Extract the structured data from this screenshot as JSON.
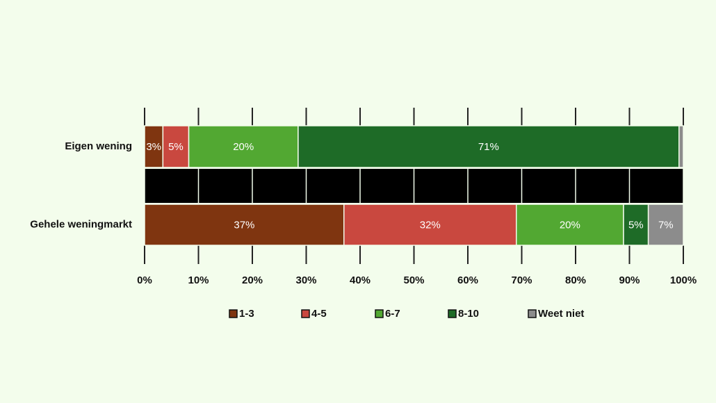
{
  "chart_data": {
    "type": "stacked-bar",
    "categories": [
      "Eigen wening",
      "Gehele weningmarkt"
    ],
    "series": [
      {
        "name": "1-3",
        "color": "#7f3510",
        "values": [
          3.4,
          37
        ],
        "value_labels": [
          "3%",
          "37%"
        ]
      },
      {
        "name": "4-5",
        "color": "#c9483f",
        "values": [
          4.8,
          32
        ],
        "value_labels": [
          "5%",
          "32%"
        ]
      },
      {
        "name": "6-7",
        "color": "#52a832",
        "values": [
          20.3,
          19.9
        ],
        "value_labels": [
          "20%",
          "20%"
        ]
      },
      {
        "name": "8-10",
        "color": "#1e6b27",
        "values": [
          70.7,
          4.6
        ],
        "value_labels": [
          "71%",
          "5%"
        ]
      },
      {
        "name": "Weet niet",
        "color": "#8c8c8c",
        "values": [
          0.8,
          6.5
        ],
        "value_labels": [
          null,
          "7%"
        ]
      }
    ],
    "xlim": [
      0,
      100
    ],
    "xticks": [
      {
        "value": 0,
        "label": "0%"
      },
      {
        "value": 10,
        "label": "10%"
      },
      {
        "value": 20,
        "label": "20%"
      },
      {
        "value": 30,
        "label": "30%"
      },
      {
        "value": 40,
        "label": "40%"
      },
      {
        "value": 50,
        "label": "50%"
      },
      {
        "value": 60,
        "label": "60%"
      },
      {
        "value": 70,
        "label": "70%"
      },
      {
        "value": 80,
        "label": "80%"
      },
      {
        "value": 90,
        "label": "90%"
      },
      {
        "value": 100,
        "label": "100%"
      }
    ]
  }
}
